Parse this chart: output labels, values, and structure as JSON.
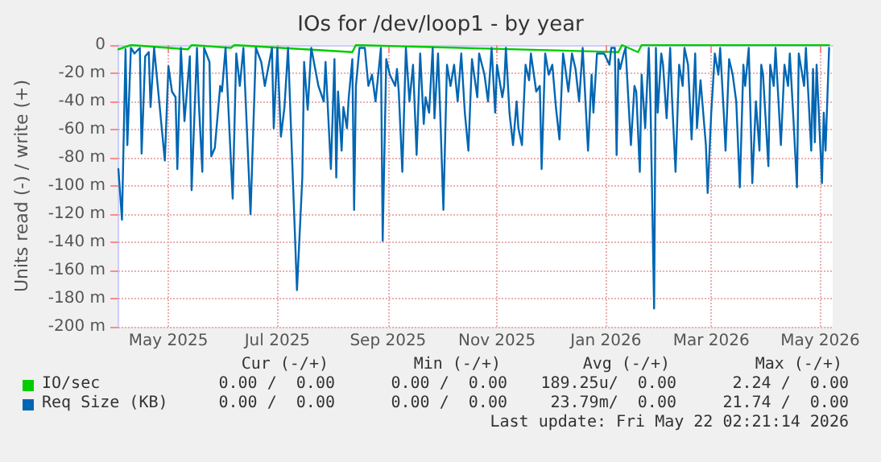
{
  "chart_data": {
    "type": "line",
    "title": "IOs for /dev/loop1 - by year",
    "ylabel": "Units read (-) / write (+)",
    "xlim": [
      "2025-04-03",
      "2026-05-08"
    ],
    "xticks": [
      {
        "value": "2025-05-01",
        "label": "May 2025"
      },
      {
        "value": "2025-07-01",
        "label": "Jul 2025"
      },
      {
        "value": "2025-09-01",
        "label": "Sep 2025"
      },
      {
        "value": "2025-11-01",
        "label": "Nov 2025"
      },
      {
        "value": "2026-01-01",
        "label": "Jan 2026"
      },
      {
        "value": "2026-03-01",
        "label": "Mar 2026"
      },
      {
        "value": "2026-05-01",
        "label": "May 2026"
      }
    ],
    "ylim": [
      -200,
      0
    ],
    "yticks": [
      0,
      {
        "value": -20,
        "label": "-20 m"
      },
      {
        "value": -40,
        "label": "-40 m"
      },
      {
        "value": -60,
        "label": "-60 m"
      },
      {
        "value": -80,
        "label": "-80 m"
      },
      {
        "value": -100,
        "label": "-100 m"
      },
      {
        "value": -120,
        "label": "-120 m"
      },
      {
        "value": -140,
        "label": "-140 m"
      },
      {
        "value": -160,
        "label": "-160 m"
      },
      {
        "value": -180,
        "label": "-180 m"
      },
      {
        "value": -200,
        "label": "-200 m"
      }
    ],
    "grid": true,
    "legend": "bottom",
    "marker": "none",
    "line_style": "solid",
    "series": [
      {
        "name": "IO/sec",
        "color": "#00cc00",
        "x": [
          "2025-04-03",
          "2025-04-10",
          "2025-05-12",
          "2025-05-14",
          "2025-06-05",
          "2025-06-07",
          "2025-08-12",
          "2025-08-14",
          "2026-01-08",
          "2026-01-10",
          "2026-01-19",
          "2026-01-21",
          "2026-05-06"
        ],
        "values": [
          -3,
          0,
          -3,
          0,
          -2,
          0,
          -5,
          0,
          -5,
          0,
          -5,
          0,
          0
        ]
      },
      {
        "name": "Req Size (KB)",
        "color": "#0066b3",
        "x": [
          "2025-04-03",
          "2025-04-05",
          "2025-04-07",
          "2025-04-08",
          "2025-04-10",
          "2025-04-12",
          "2025-04-15",
          "2025-04-16",
          "2025-04-18",
          "2025-04-20",
          "2025-04-21",
          "2025-04-23",
          "2025-04-29",
          "2025-05-01",
          "2025-05-03",
          "2025-05-05",
          "2025-05-06",
          "2025-05-08",
          "2025-05-10",
          "2025-05-13",
          "2025-05-14",
          "2025-05-17",
          "2025-05-18",
          "2025-05-20",
          "2025-05-21",
          "2025-05-24",
          "2025-05-25",
          "2025-05-27",
          "2025-05-30",
          "2025-05-31",
          "2025-06-02",
          "2025-06-06",
          "2025-06-08",
          "2025-06-10",
          "2025-06-12",
          "2025-06-16",
          "2025-06-19",
          "2025-06-22",
          "2025-06-24",
          "2025-06-28",
          "2025-06-29",
          "2025-07-01",
          "2025-07-03",
          "2025-07-05",
          "2025-07-07",
          "2025-07-12",
          "2025-07-15",
          "2025-07-16",
          "2025-07-18",
          "2025-07-20",
          "2025-07-24",
          "2025-07-27",
          "2025-07-28",
          "2025-07-31",
          "2025-08-02",
          "2025-08-03",
          "2025-08-04",
          "2025-08-06",
          "2025-08-07",
          "2025-08-09",
          "2025-08-10",
          "2025-08-12",
          "2025-08-13",
          "2025-08-14",
          "2025-08-16",
          "2025-08-19",
          "2025-08-21",
          "2025-08-23",
          "2025-08-25",
          "2025-08-28",
          "2025-08-29",
          "2025-08-31",
          "2025-09-02",
          "2025-09-05",
          "2025-09-06",
          "2025-09-07",
          "2025-09-09",
          "2025-09-11",
          "2025-09-13",
          "2025-09-15",
          "2025-09-17",
          "2025-09-19",
          "2025-09-21",
          "2025-09-22",
          "2025-09-24",
          "2025-09-26",
          "2025-09-27",
          "2025-09-29",
          "2025-09-30",
          "2025-10-02",
          "2025-10-04",
          "2025-10-06",
          "2025-10-08",
          "2025-10-10",
          "2025-10-12",
          "2025-10-14",
          "2025-10-16",
          "2025-10-18",
          "2025-10-21",
          "2025-10-22",
          "2025-10-25",
          "2025-10-27",
          "2025-10-29",
          "2025-10-31",
          "2025-11-01",
          "2025-11-04",
          "2025-11-05",
          "2025-11-06",
          "2025-11-08",
          "2025-11-10",
          "2025-11-12",
          "2025-11-13",
          "2025-11-15",
          "2025-11-17",
          "2025-11-19",
          "2025-11-20",
          "2025-11-23",
          "2025-11-25",
          "2025-11-26",
          "2025-11-28",
          "2025-11-30",
          "2025-12-02",
          "2025-12-04",
          "2025-12-06",
          "2025-12-08",
          "2025-12-09",
          "2025-12-11",
          "2025-12-13",
          "2025-12-15",
          "2025-12-17",
          "2025-12-19",
          "2025-12-22",
          "2025-12-24",
          "2025-12-25",
          "2025-12-27",
          "2025-12-30",
          "2025-12-31",
          "2026-01-03",
          "2026-01-04",
          "2026-01-06",
          "2026-01-07",
          "2026-01-08",
          "2026-01-09",
          "2026-01-11",
          "2026-01-12",
          "2026-01-15",
          "2026-01-17",
          "2026-01-18",
          "2026-01-20",
          "2026-01-21",
          "2026-01-23",
          "2026-01-25",
          "2026-01-26",
          "2026-01-28",
          "2026-01-29",
          "2026-01-30",
          "2026-02-01",
          "2026-02-02",
          "2026-02-04",
          "2026-02-06",
          "2026-02-07",
          "2026-02-09",
          "2026-02-11",
          "2026-02-13",
          "2026-02-14",
          "2026-02-16",
          "2026-02-18",
          "2026-02-20",
          "2026-02-21",
          "2026-02-23",
          "2026-02-26",
          "2026-02-27",
          "2026-03-01",
          "2026-03-03",
          "2026-03-05",
          "2026-03-06",
          "2026-03-08",
          "2026-03-09",
          "2026-03-11",
          "2026-03-13",
          "2026-03-15",
          "2026-03-17",
          "2026-03-19",
          "2026-03-20",
          "2026-03-22",
          "2026-03-24",
          "2026-03-26",
          "2026-03-28",
          "2026-03-29",
          "2026-03-30",
          "2026-04-02",
          "2026-04-03",
          "2026-04-05",
          "2026-04-06",
          "2026-04-09",
          "2026-04-11",
          "2026-04-13",
          "2026-04-14",
          "2026-04-16",
          "2026-04-18",
          "2026-04-19",
          "2026-04-22",
          "2026-04-23",
          "2026-04-26",
          "2026-04-27",
          "2026-04-28",
          "2026-04-29",
          "2026-05-02",
          "2026-05-03",
          "2026-05-04",
          "2026-05-06"
        ],
        "values": [
          -88,
          -124,
          -3,
          -71,
          -2,
          -6,
          -2,
          -77,
          -8,
          -5,
          -44,
          -2,
          -82,
          -15,
          -33,
          -37,
          -88,
          -2,
          -54,
          -8,
          -103,
          -2,
          -40,
          -90,
          -2,
          -12,
          -79,
          -73,
          -29,
          -33,
          -2,
          -109,
          -6,
          -29,
          -2,
          -120,
          -2,
          -12,
          -29,
          -2,
          -59,
          -2,
          -65,
          -44,
          -2,
          -174,
          -94,
          -12,
          -46,
          -2,
          -29,
          -40,
          -12,
          -88,
          -10,
          -94,
          -33,
          -75,
          -44,
          -59,
          -37,
          -10,
          -117,
          -29,
          -2,
          -2,
          -29,
          -21,
          -40,
          -2,
          -139,
          -10,
          -21,
          -29,
          -17,
          -33,
          -90,
          -2,
          -40,
          -14,
          -78,
          -6,
          -56,
          -37,
          -48,
          -2,
          -52,
          -6,
          -40,
          -117,
          -14,
          -29,
          -14,
          -40,
          -6,
          -48,
          -75,
          -10,
          -37,
          -6,
          -21,
          -40,
          -2,
          -48,
          -14,
          -37,
          -29,
          -2,
          -48,
          -71,
          -40,
          -59,
          -71,
          -14,
          -25,
          -6,
          -33,
          -29,
          -88,
          -6,
          -21,
          -14,
          -44,
          -67,
          -6,
          -14,
          -33,
          -6,
          -17,
          -40,
          -2,
          -75,
          -21,
          -48,
          -6,
          -6,
          -6,
          -14,
          -2,
          -2,
          -78,
          -10,
          -17,
          -6,
          -2,
          -71,
          -29,
          -33,
          -90,
          -21,
          -59,
          -2,
          -44,
          -187,
          -2,
          -48,
          -6,
          -14,
          -52,
          -2,
          -37,
          -90,
          -14,
          -29,
          -2,
          -14,
          -67,
          -6,
          -59,
          -25,
          -71,
          -105,
          -48,
          -6,
          -21,
          -2,
          -48,
          -75,
          -10,
          -21,
          -40,
          -101,
          -14,
          -29,
          -2,
          -98,
          -40,
          -75,
          -14,
          -21,
          -86,
          -14,
          -29,
          -2,
          -71,
          -14,
          -29,
          -6,
          -52,
          -101,
          -6,
          -29,
          -2,
          -75,
          -17,
          -69,
          -14,
          -98,
          -48,
          -75,
          -2
        ]
      }
    ],
    "annotations": [
      "Cur (-/+)",
      "Min (-/+)",
      "Avg (-/+)",
      "Max (-/+)",
      "0.00 /  0.00",
      "0.00 /  0.00",
      "189.25u/  0.00",
      "2.24 /  0.00",
      "0.00 /  0.00",
      "0.00 /  0.00",
      "23.79m/  0.00",
      "21.74 /  0.00",
      "Last update: Fri May 22 02:21:14 2026"
    ]
  }
}
